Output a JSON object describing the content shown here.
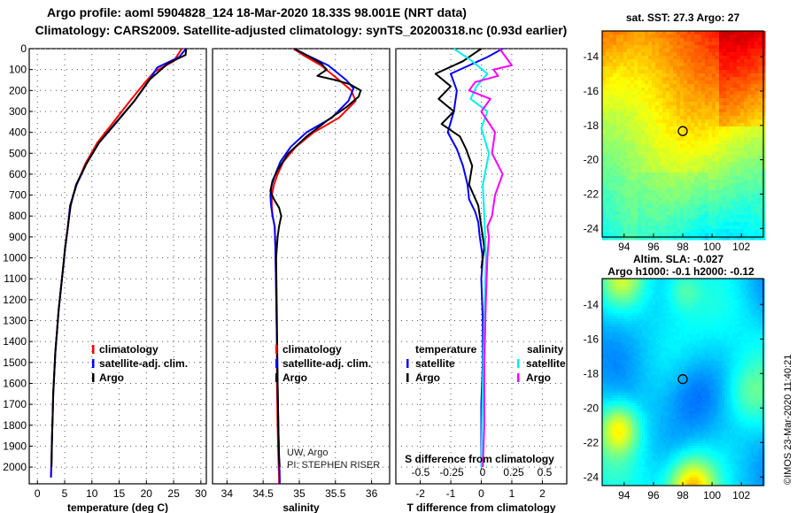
{
  "header": {
    "line1": "Argo profile: aoml 5904828_124 18-Mar-2020 18.33S 98.001E (NRT data)",
    "line2": "Climatology: CARS2009. Satellite-adjusted climatology: synTS_20200318.nc (0.93d earlier)"
  },
  "colors": {
    "climatology": "#ff0000",
    "satellite": "#0000ff",
    "argo": "#000000",
    "satellite_s": "#00eeee",
    "argo_s": "#ff00ff"
  },
  "chart_data": [
    {
      "type": "line",
      "id": "temperature",
      "xlabel": "temperature (deg C)",
      "ylabel": "",
      "xlim": [
        -1.5,
        31
      ],
      "ylim": [
        2080,
        0
      ],
      "xticks": [
        0,
        5,
        10,
        15,
        20,
        25,
        30
      ],
      "yticks": [
        0,
        100,
        200,
        300,
        400,
        500,
        600,
        700,
        800,
        900,
        1000,
        1100,
        1200,
        1300,
        1400,
        1500,
        1600,
        1700,
        1800,
        1900,
        2000
      ],
      "grid": true,
      "legend": {
        "position": "lower-right",
        "entries": [
          {
            "label": "climatology",
            "color_key": "climatology"
          },
          {
            "label": "satellite-adj. clim.",
            "color_key": "satellite"
          },
          {
            "label": "Argo",
            "color_key": "argo"
          }
        ]
      },
      "series": [
        {
          "name": "climatology",
          "color_key": "climatology",
          "x": [
            26.5,
            25.0,
            21.5,
            19.8,
            17.0,
            14.0,
            11.0,
            8.8,
            7.2,
            6.0,
            5.6,
            5.1,
            4.7,
            4.3,
            3.9,
            3.6,
            3.3,
            3.1,
            2.9,
            2.8,
            2.7,
            2.5
          ],
          "y": [
            0,
            60,
            110,
            160,
            250,
            350,
            450,
            550,
            650,
            750,
            850,
            950,
            1050,
            1150,
            1250,
            1350,
            1450,
            1550,
            1650,
            1750,
            1850,
            2050
          ]
        },
        {
          "name": "satellite-adj. clim.",
          "color_key": "satellite",
          "x": [
            27.3,
            26.0,
            22.0,
            20.3,
            17.8,
            14.6,
            11.3,
            9.0,
            7.2,
            6.0,
            5.6,
            5.1,
            4.7,
            4.3,
            3.9,
            3.6,
            3.3,
            3.1,
            2.9,
            2.8,
            2.7,
            2.5
          ],
          "y": [
            0,
            40,
            90,
            160,
            250,
            350,
            450,
            550,
            650,
            750,
            850,
            950,
            1050,
            1150,
            1250,
            1350,
            1450,
            1550,
            1650,
            1750,
            1850,
            2050
          ]
        },
        {
          "name": "Argo",
          "color_key": "argo",
          "x": [
            27.3,
            27.2,
            24.0,
            20.5,
            17.8,
            14.5,
            11.3,
            9.0,
            7.1,
            6.1,
            5.6,
            5.1,
            4.7,
            4.3,
            3.9,
            3.6,
            3.3,
            3.1,
            2.9,
            2.8,
            2.7,
            2.6
          ],
          "y": [
            0,
            30,
            70,
            150,
            250,
            350,
            450,
            550,
            650,
            750,
            850,
            950,
            1050,
            1150,
            1250,
            1350,
            1450,
            1550,
            1650,
            1750,
            1850,
            2000
          ]
        }
      ]
    },
    {
      "type": "line",
      "id": "salinity",
      "xlabel": "salinity",
      "ylabel": "",
      "xlim": [
        33.8,
        36.25
      ],
      "ylim": [
        2080,
        0
      ],
      "xticks": [
        34,
        34.5,
        35,
        35.5,
        36
      ],
      "yticks": [
        0,
        100,
        200,
        300,
        400,
        500,
        600,
        700,
        800,
        900,
        1000,
        1100,
        1200,
        1300,
        1400,
        1500,
        1600,
        1700,
        1800,
        1900,
        2000
      ],
      "grid": true,
      "legend": {
        "position": "lower-right",
        "entries": [
          {
            "label": "climatology",
            "color_key": "climatology"
          },
          {
            "label": "satellite-adj. clim.",
            "color_key": "satellite"
          },
          {
            "label": "Argo",
            "color_key": "argo"
          }
        ]
      },
      "annotations": [
        "UW, Argo",
        "PI: STEPHEN RISER"
      ],
      "series": [
        {
          "name": "climatology",
          "color_key": "climatology",
          "x": [
            34.92,
            35.05,
            35.3,
            35.55,
            35.72,
            35.78,
            35.55,
            35.2,
            34.95,
            34.78,
            34.7,
            34.65,
            34.62,
            34.62,
            34.63,
            34.66,
            34.67,
            34.68,
            34.69,
            34.69,
            34.7,
            34.71,
            34.72,
            34.72
          ],
          "y": [
            0,
            30,
            80,
            150,
            200,
            250,
            330,
            400,
            470,
            540,
            600,
            650,
            700,
            750,
            800,
            850,
            950,
            1150,
            1400,
            1600,
            1800,
            1950,
            2050,
            2080
          ]
        },
        {
          "name": "satellite-adj. clim.",
          "color_key": "satellite",
          "x": [
            34.93,
            35.1,
            35.4,
            35.65,
            35.75,
            35.68,
            35.45,
            35.1,
            34.88,
            34.74,
            34.67,
            34.62,
            34.6,
            34.61,
            34.63,
            34.66,
            34.67,
            34.68,
            34.69,
            34.7,
            34.71,
            34.72,
            34.73,
            34.73
          ],
          "y": [
            0,
            30,
            80,
            150,
            190,
            250,
            330,
            400,
            470,
            540,
            600,
            650,
            700,
            750,
            800,
            850,
            950,
            1150,
            1400,
            1600,
            1800,
            1950,
            2050,
            2080
          ]
        },
        {
          "name": "Argo",
          "color_key": "argo",
          "x": [
            34.93,
            35.15,
            35.3,
            35.38,
            35.25,
            35.5,
            35.7,
            35.85,
            35.82,
            35.65,
            35.4,
            35.1,
            34.85,
            34.7,
            34.63,
            34.6,
            34.65,
            34.72,
            34.75,
            34.72,
            34.7,
            34.68,
            34.69,
            34.7,
            34.71,
            34.72,
            34.73
          ],
          "y": [
            0,
            40,
            70,
            100,
            130,
            150,
            170,
            200,
            230,
            280,
            340,
            420,
            500,
            580,
            630,
            680,
            720,
            760,
            800,
            850,
            900,
            1000,
            1300,
            1600,
            1800,
            1950,
            2000
          ]
        }
      ]
    },
    {
      "type": "line",
      "id": "difference",
      "xlabel": "T difference from climatology",
      "ylabel": "",
      "xlim": [
        -2.8,
        2.8
      ],
      "ylim": [
        2080,
        0
      ],
      "xticks": [
        -2,
        -1,
        0,
        1,
        2
      ],
      "sticks": [
        -0.5,
        -0.25,
        0,
        0.25,
        0.5
      ],
      "s_axis_label": "S difference from climatology",
      "yticks": [
        0,
        100,
        200,
        300,
        400,
        500,
        600,
        700,
        800,
        900,
        1000,
        1100,
        1200,
        1300,
        1400,
        1500,
        1600,
        1700,
        1800,
        1900,
        2000
      ],
      "grid": true,
      "legend": {
        "position": "lower-center",
        "headers": [
          "temperature",
          "salinity"
        ],
        "entries": [
          {
            "label": "satellite",
            "color_key": "satellite",
            "column": 0
          },
          {
            "label": "Argo",
            "color_key": "argo",
            "column": 0
          },
          {
            "label": "satellite",
            "color_key": "satellite_s",
            "column": 1
          },
          {
            "label": "Argo",
            "color_key": "argo_s",
            "column": 1
          }
        ]
      },
      "series": [
        {
          "name": "T satellite",
          "color_key": "satellite",
          "x": [
            0.7,
            0.2,
            -1.0,
            -0.8,
            -0.9,
            -1.1,
            -0.8,
            -0.6,
            -0.45,
            -0.4,
            -0.2,
            -0.1,
            -0.05,
            0.05,
            0.0,
            0.05,
            0.05,
            0.0,
            0.0,
            0.0
          ],
          "y": [
            0,
            40,
            120,
            200,
            300,
            400,
            480,
            560,
            650,
            720,
            780,
            830,
            900,
            1000,
            1100,
            1300,
            1500,
            1700,
            1900,
            2000
          ]
        },
        {
          "name": "T Argo",
          "color_key": "argo",
          "x": [
            0.0,
            -0.6,
            -1.5,
            -1.0,
            -1.4,
            -0.9,
            -1.3,
            -0.7,
            -0.5,
            -0.3,
            -0.4,
            -0.1,
            0.0,
            0.1,
            0.05,
            0.0
          ],
          "y": [
            0,
            60,
            120,
            180,
            240,
            300,
            360,
            420,
            480,
            560,
            650,
            750,
            850,
            950,
            1000,
            1050
          ]
        },
        {
          "name": "S satellite",
          "color_key": "satellite_s",
          "x": [
            -0.9,
            -0.3,
            0.2,
            -0.15,
            -0.35,
            0.2,
            0.0,
            0.25,
            0.05,
            0.1,
            0.15,
            0.1,
            0.05,
            0.0
          ],
          "y": [
            0,
            60,
            120,
            180,
            240,
            300,
            380,
            500,
            650,
            800,
            1000,
            1300,
            1600,
            2000
          ]
        },
        {
          "name": "S Argo",
          "color_key": "argo_s",
          "x": [
            0.6,
            0.8,
            1.0,
            0.4,
            0.55,
            -0.2,
            -0.4,
            0.3,
            0.0,
            0.45,
            0.35,
            0.7,
            0.45,
            0.35,
            0.2,
            0.25,
            0.2,
            0.15,
            0.1,
            0.1,
            0.05
          ],
          "y": [
            0,
            40,
            80,
            100,
            130,
            160,
            200,
            240,
            300,
            400,
            500,
            600,
            700,
            800,
            850,
            900,
            1000,
            1200,
            1500,
            1800,
            2000
          ]
        }
      ]
    },
    {
      "type": "heatmap",
      "id": "sst_map",
      "title": "sat. SST: 27.3 Argo: 27",
      "xlim": [
        92.5,
        103.5
      ],
      "ylim": [
        -24.5,
        -12.5
      ],
      "xticks": [
        94,
        96,
        98,
        100,
        102
      ],
      "yticks": [
        -14,
        -16,
        -18,
        -20,
        -22,
        -24
      ],
      "marker": {
        "lon": 98.0,
        "lat": -18.33
      },
      "palette": "jet"
    },
    {
      "type": "heatmap",
      "id": "sla_map",
      "title": "Altim. SLA: -0.027",
      "subtitle": "Argo h1000: -0.1 h2000: -0.12",
      "xlim": [
        92.5,
        103.5
      ],
      "ylim": [
        -24.5,
        -12.5
      ],
      "xticks": [
        94,
        96,
        98,
        100,
        102
      ],
      "yticks": [
        -14,
        -16,
        -18,
        -20,
        -22,
        -24
      ],
      "marker": {
        "lon": 98.0,
        "lat": -18.33
      },
      "palette": "jet"
    }
  ],
  "footer": {
    "credit": "©IMOS 23-Mar-2020 11:40:21"
  }
}
